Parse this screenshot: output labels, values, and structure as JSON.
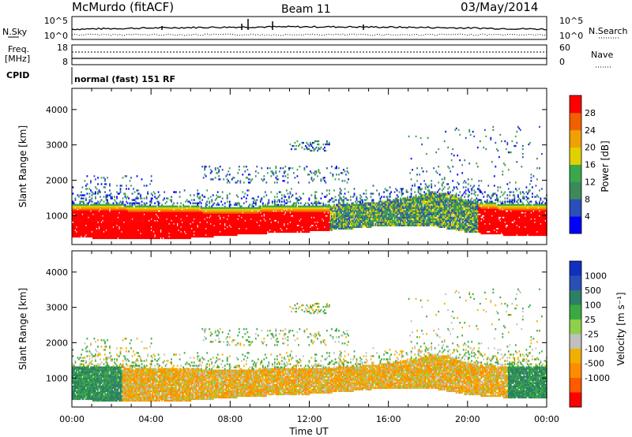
{
  "header": {
    "station": "McMurdo (fitACF)",
    "beam": "Beam 11",
    "date": "03/May/2014"
  },
  "panels": {
    "nsky": {
      "left_label": "N.Sky",
      "left_top": "10^5",
      "left_bottom": "10^0",
      "right_top": "10^5",
      "right_bottom": "10^0",
      "right_label": "N.Search"
    },
    "freq": {
      "left_label_1": "Freq.",
      "left_label_2": "[MHz]",
      "left_top": "18",
      "left_bottom": "8",
      "right_top": "60",
      "right_bottom": "0",
      "right_label": "Nave"
    },
    "cpid": {
      "label": "CPID",
      "mode": "normal (fast) 151 RF"
    }
  },
  "colors": {
    "power_scale": [
      "#0000ff",
      "#2b4fb8",
      "#3c8a5a",
      "#3aa84a",
      "#e0d000",
      "#f0a000",
      "#f06000",
      "#ff0000"
    ],
    "velocity_scale": [
      "#ff0000",
      "#ff5a00",
      "#ff8c00",
      "#f0b000",
      "#c0c0c0",
      "#8ed04a",
      "#3aaa40",
      "#2d7f66",
      "#2b4fb8",
      "#1030c0"
    ]
  },
  "chart_data": [
    {
      "type": "heatmap",
      "title": "Power",
      "xlabel": "Time UT",
      "ylabel": "Slant Range [km]",
      "x_ticks": [
        "00:00",
        "04:00",
        "08:00",
        "12:00",
        "16:00",
        "20:00",
        "00:00"
      ],
      "y_ticks": [
        "1000",
        "2000",
        "3000",
        "4000"
      ],
      "xlim": [
        0,
        24
      ],
      "ylim": [
        180,
        4600
      ],
      "colorbar": {
        "label": "Power [dB]",
        "ticks": [
          "4",
          "8",
          "12",
          "16",
          "20",
          "24",
          "28"
        ],
        "range": [
          0,
          32
        ]
      },
      "echo_band": {
        "time": [
          0,
          2,
          4,
          6,
          8,
          10,
          12,
          14,
          16,
          18,
          19,
          20,
          22,
          24
        ],
        "range_low": [
          350,
          330,
          330,
          340,
          420,
          480,
          520,
          600,
          700,
          700,
          600,
          500,
          420,
          400
        ],
        "range_high": [
          1300,
          1300,
          1250,
          1250,
          1200,
          1250,
          1250,
          1300,
          1400,
          1600,
          1600,
          1400,
          1300,
          1300
        ],
        "peak_power_db": 28
      }
    },
    {
      "type": "heatmap",
      "title": "Velocity",
      "xlabel": "Time UT",
      "ylabel": "Slant Range [km]",
      "x_ticks": [
        "00:00",
        "04:00",
        "08:00",
        "12:00",
        "16:00",
        "20:00",
        "00:00"
      ],
      "y_ticks": [
        "1000",
        "2000",
        "3000",
        "4000"
      ],
      "xlim": [
        0,
        24
      ],
      "ylim": [
        180,
        4600
      ],
      "colorbar": {
        "label": "Velocity [m s⁻¹]",
        "ticks": [
          "1000",
          "500",
          "100",
          "25",
          "-25",
          "-100",
          "-500",
          "-1000"
        ]
      }
    }
  ]
}
